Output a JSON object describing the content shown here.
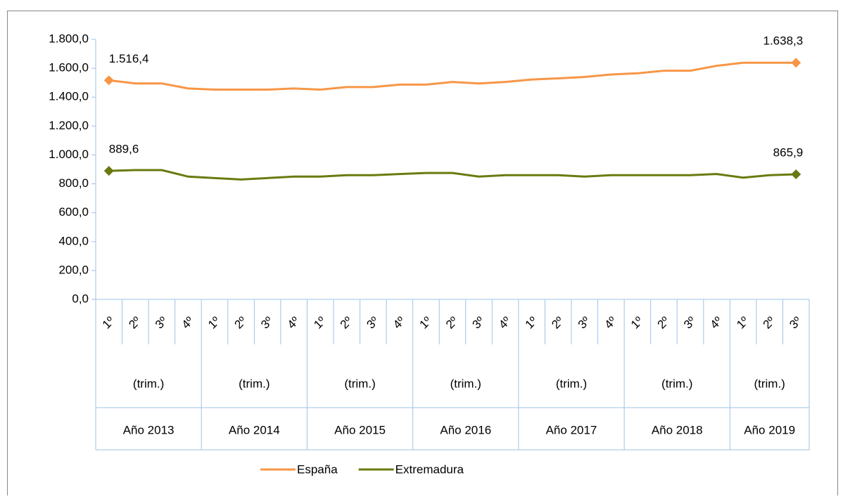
{
  "chart_data": {
    "type": "line",
    "groups": [
      {
        "label": "Año 2013",
        "sublabel": "(trim.)",
        "categories": [
          "1º",
          "2º",
          "3º",
          "4º"
        ]
      },
      {
        "label": "Año 2014",
        "sublabel": "(trim.)",
        "categories": [
          "1º",
          "2º",
          "3º",
          "4º"
        ]
      },
      {
        "label": "Año 2015",
        "sublabel": "(trim.)",
        "categories": [
          "1º",
          "2º",
          "3º",
          "4º"
        ]
      },
      {
        "label": "Año 2016",
        "sublabel": "(trim.)",
        "categories": [
          "1º",
          "2º",
          "3º",
          "4º"
        ]
      },
      {
        "label": "Año 2017",
        "sublabel": "(trim.)",
        "categories": [
          "1º",
          "2º",
          "3º",
          "4º"
        ]
      },
      {
        "label": "Año 2018",
        "sublabel": "(trim.)",
        "categories": [
          "1º",
          "2º",
          "3º",
          "4º"
        ]
      },
      {
        "label": "Año 2019",
        "sublabel": "(trim.)",
        "categories": [
          "1º",
          "2º",
          "3º"
        ]
      }
    ],
    "series": [
      {
        "name": "España",
        "color": "#f79646",
        "values": [
          1516.4,
          1495,
          1495,
          1460,
          1452,
          1452,
          1452,
          1460,
          1452,
          1470,
          1470,
          1487,
          1487,
          1505,
          1495,
          1505,
          1522,
          1530,
          1540,
          1557,
          1565,
          1583,
          1583,
          1617,
          1638,
          1638,
          1638.3
        ],
        "value_labels": [
          "1.516,4",
          null,
          null,
          null,
          null,
          null,
          null,
          null,
          null,
          null,
          null,
          null,
          null,
          null,
          null,
          null,
          null,
          null,
          null,
          null,
          null,
          null,
          null,
          null,
          null,
          null,
          "1.638,3"
        ]
      },
      {
        "name": "Extremadura",
        "color": "#6b7a0f",
        "values": [
          889.6,
          895,
          895,
          850,
          840,
          830,
          840,
          850,
          850,
          860,
          860,
          868,
          875,
          875,
          850,
          860,
          860,
          860,
          850,
          860,
          860,
          860,
          860,
          868,
          843,
          860,
          865.9
        ],
        "value_labels": [
          "889,6",
          null,
          null,
          null,
          null,
          null,
          null,
          null,
          null,
          null,
          null,
          null,
          null,
          null,
          null,
          null,
          null,
          null,
          null,
          null,
          null,
          null,
          null,
          null,
          null,
          null,
          "865,9"
        ]
      }
    ],
    "ylim": [
      0,
      1800
    ],
    "yticks": [
      {
        "value": 0,
        "label": "0,0"
      },
      {
        "value": 200,
        "label": "200,0"
      },
      {
        "value": 400,
        "label": "400,0"
      },
      {
        "value": 600,
        "label": "600,0"
      },
      {
        "value": 800,
        "label": "800,0"
      },
      {
        "value": 1000,
        "label": "1.000,0"
      },
      {
        "value": 1200,
        "label": "1.200,0"
      },
      {
        "value": 1400,
        "label": "1.400,0"
      },
      {
        "value": 1600,
        "label": "1.600,0"
      },
      {
        "value": 1800,
        "label": "1.800,0"
      }
    ],
    "grid": false,
    "legend": "bottom"
  }
}
